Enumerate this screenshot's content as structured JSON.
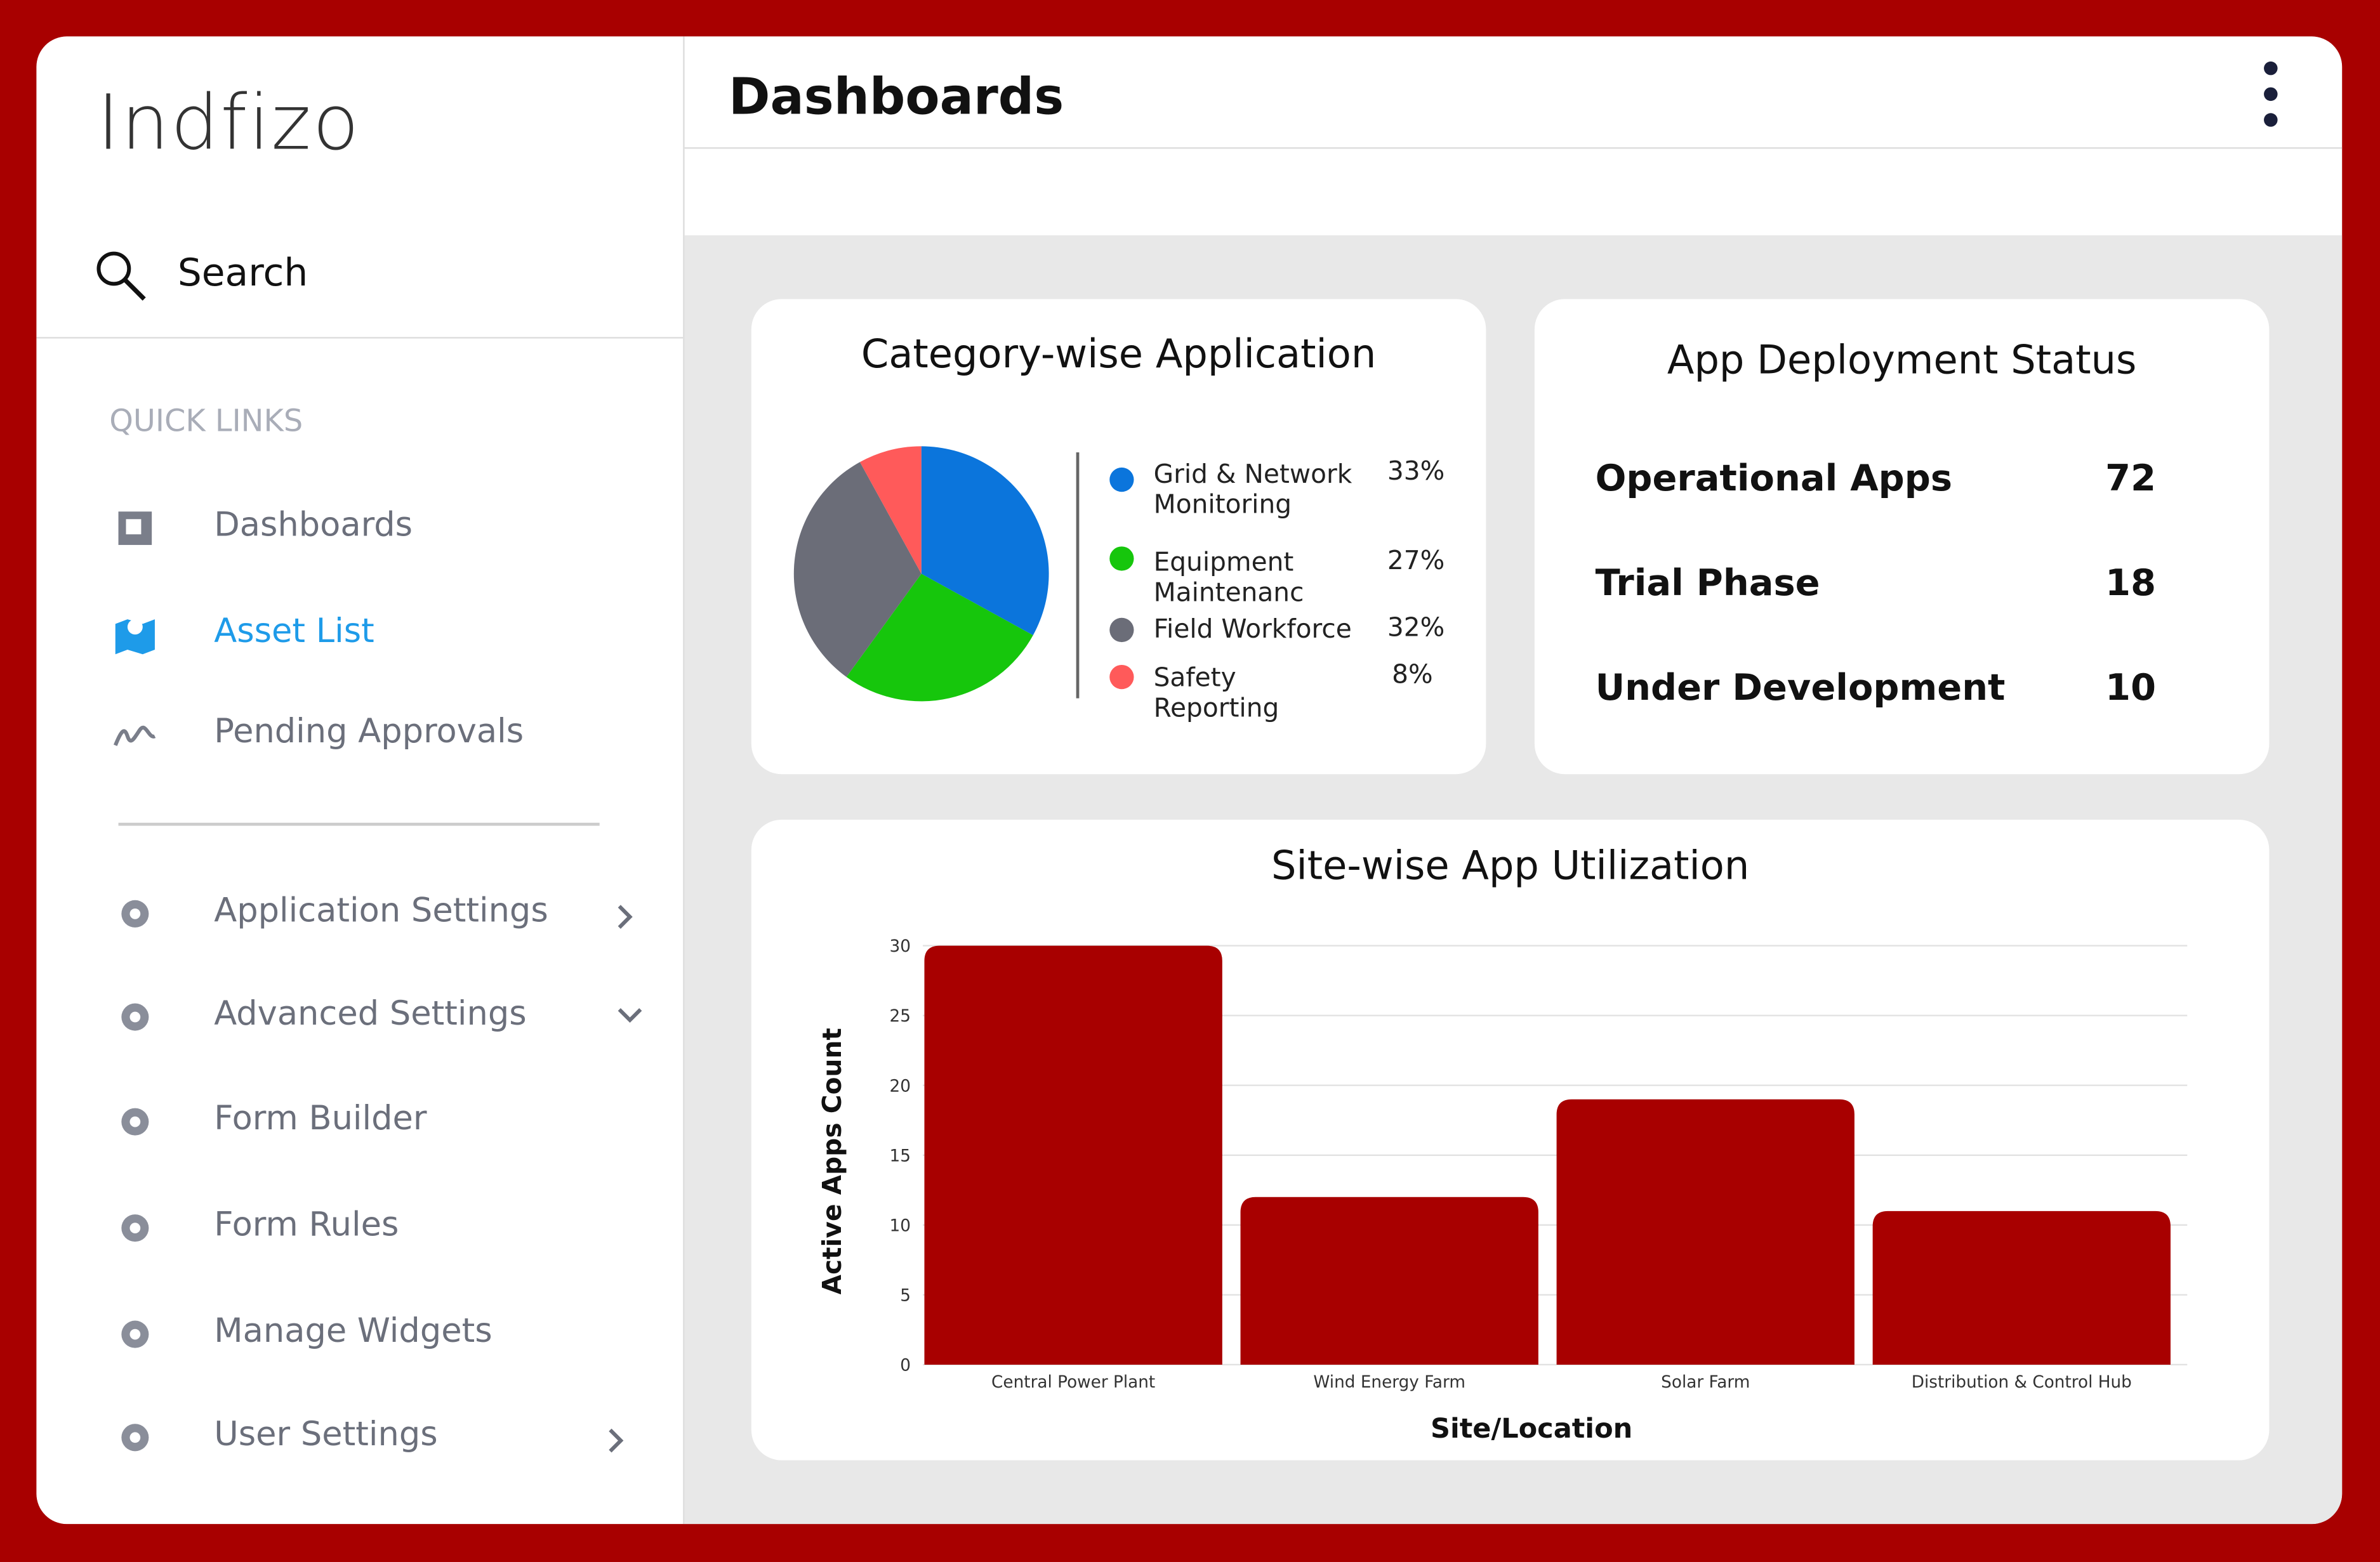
{
  "sidebar": {
    "logo": "Indfizo",
    "search": "Search",
    "quick_links_label": "QUICK LINKS",
    "quick_links": [
      "Dashboards",
      "Asset List",
      "Pending Approvals"
    ],
    "settings": [
      "Application Settings",
      "Advanced Settings",
      "Form Builder",
      "Form Rules",
      "Manage Widgets",
      "User Settings"
    ]
  },
  "header": {
    "title": "Dashboards"
  },
  "deployment_status": {
    "title": "App Deployment Status",
    "rows": [
      {
        "label": "Operational Apps",
        "value": 72
      },
      {
        "label": "Trial Phase",
        "value": 18
      },
      {
        "label": "Under Development",
        "value": 10
      }
    ]
  },
  "chart_data": [
    {
      "type": "pie",
      "title": "Category-wise Application",
      "categories": [
        "Grid & Network Monitoring",
        "Equipment Maintenanc",
        "Field Workforce",
        "Safety Reporting"
      ],
      "values": [
        33,
        27,
        32,
        8
      ],
      "value_labels": [
        "33%",
        "27%",
        "32%",
        "8%"
      ],
      "colors": [
        "#0b75dc",
        "#16c60c",
        "#6b6d78",
        "#ff5a5a"
      ]
    },
    {
      "type": "bar",
      "title": "Site-wise App Utilization",
      "x_label": "Site/Location",
      "y_label": "Active Apps Count",
      "categories": [
        "Central Power Plant",
        "Wind Energy Farm",
        "Solar Farm",
        "Distribution & Control Hub"
      ],
      "values": [
        30,
        12,
        19,
        11
      ],
      "color": "#a80000",
      "ylim": [
        0,
        30
      ],
      "yticks": [
        0,
        5,
        10,
        15,
        20,
        25,
        30
      ],
      "grid": true
    }
  ]
}
